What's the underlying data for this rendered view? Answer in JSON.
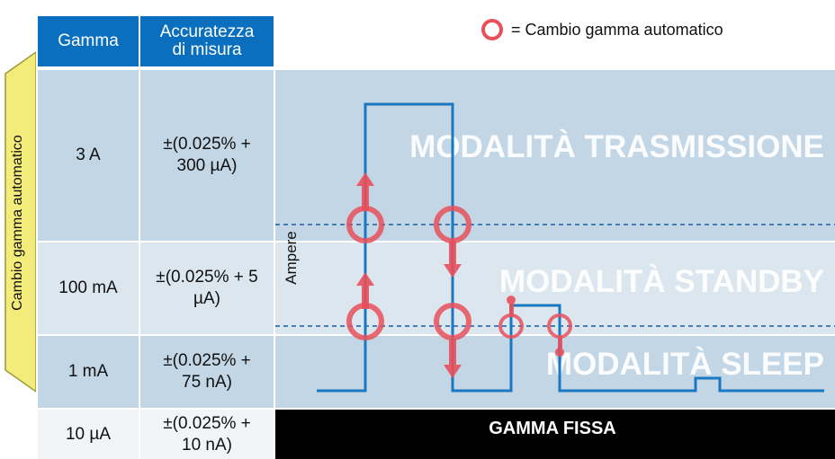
{
  "legend": {
    "symbol_name": "red-circle-icon",
    "label": "= Cambio gamma automatico"
  },
  "table": {
    "headers": [
      "Gamma",
      "Accuratezza\ndi misura"
    ],
    "rows": [
      {
        "range": "3 A",
        "accuracy": "±(0.025% +\n300 µA)"
      },
      {
        "range": "100 mA",
        "accuracy": "±(0.025% + 5\nµA)"
      },
      {
        "range": "1 mA",
        "accuracy": "±(0.025% +\n75 nA)"
      },
      {
        "range": "10 µA",
        "accuracy": "±(0.025% +\n10 nA)"
      }
    ]
  },
  "side_label": "Cambio gamma automatico",
  "axis_label": "Ampere",
  "modes": {
    "transmission": "MODALITÀ TRASMISSIONE",
    "standby": "MODALITÀ STANDBY",
    "sleep": "MODALITÀ SLEEP"
  },
  "fixed_range": "GAMMA FISSA",
  "colors": {
    "header": "#0a6fbf",
    "signal": "#1a78c2",
    "marker": "#e8505b",
    "badge": "#f3ec7a"
  }
}
